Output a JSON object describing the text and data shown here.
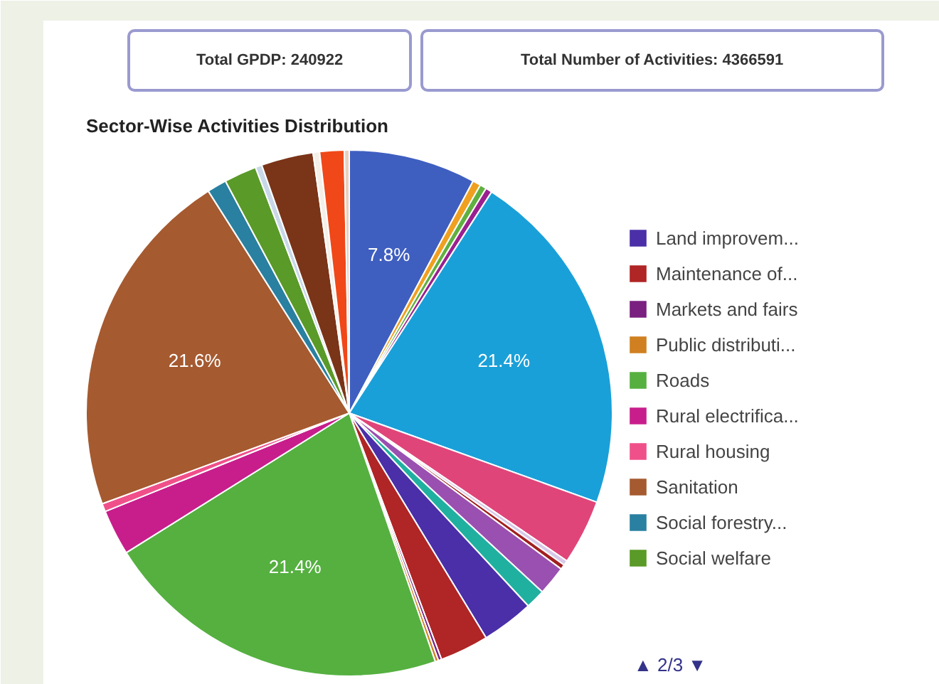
{
  "chart_data": {
    "type": "pie",
    "title": "Sector-Wise Activities Distribution",
    "annotations": [
      "Total GPDP: 240922",
      "Total Number of Activities: 4366591",
      "▲ 2/3 ▼"
    ],
    "categories": [
      null,
      null,
      null,
      null,
      null,
      null,
      null,
      null,
      null,
      null,
      "Land improvem...",
      "Maintenance of...",
      "Markets and fairs",
      "Public distributi...",
      "Roads",
      "Rural electrifica...",
      "Rural housing",
      "Sanitation",
      "Social forestry...",
      "Social welfare",
      null,
      null,
      null,
      null,
      null
    ],
    "values": [
      7.8,
      0.5,
      0.4,
      0.4,
      21.4,
      4.0,
      0.3,
      0.3,
      1.8,
      1.2,
      3.2,
      3.0,
      0.2,
      0.2,
      21.4,
      2.8,
      0.5,
      21.6,
      1.2,
      2.0,
      0.4,
      3.2,
      0.4,
      1.5,
      0.3
    ],
    "colors": [
      "#3f5fc0",
      "#f0a020",
      "#60b040",
      "#9a2090",
      "#1aa0d8",
      "#e0457a",
      "#d8c8e8",
      "#a02020",
      "#9a50b0",
      "#20b0a0",
      "#4a2fa8",
      "#b02525",
      "#7a2080",
      "#d08020",
      "#55b040",
      "#c81e8c",
      "#f0508a",
      "#a55a30",
      "#2a80a0",
      "#5a9a28",
      "#c8d8e8",
      "#7a3418",
      "#f4f0e8",
      "#f04818",
      "#e8d0c0"
    ],
    "value_labels": [
      "7.8%",
      null,
      null,
      null,
      "21.4%",
      null,
      null,
      null,
      null,
      null,
      null,
      null,
      null,
      null,
      "21.4%",
      null,
      null,
      "21.6%",
      null,
      null,
      null,
      null,
      null,
      null,
      null
    ],
    "legend": "right"
  }
}
